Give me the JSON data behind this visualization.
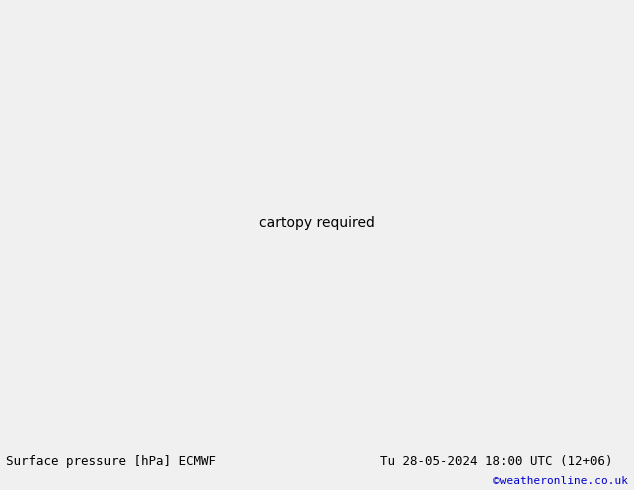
{
  "title_left": "Surface pressure [hPa] ECMWF",
  "title_right": "Tu 28-05-2024 18:00 UTC (12+06)",
  "copyright": "©weatheronline.co.uk",
  "land_color": "#b5d98a",
  "sea_color": "#d4dce8",
  "border_color": "#888888",
  "coastline_color": "#888888",
  "bottom_bar_color": "#f0f0f0",
  "bottom_text_color": "#000000",
  "copyright_color": "#0000cc",
  "red_isobar_color": "#ff0000",
  "black_isobar_color": "#000000",
  "blue_isobar_color": "#0000ff",
  "fig_width": 6.34,
  "fig_height": 4.9,
  "dpi": 100,
  "lon_min": -12,
  "lon_max": 60,
  "lat_min": 22,
  "lat_max": 58,
  "title_fontsize": 9.0,
  "copyright_fontsize": 8.0,
  "label_fontsize": 7.0
}
